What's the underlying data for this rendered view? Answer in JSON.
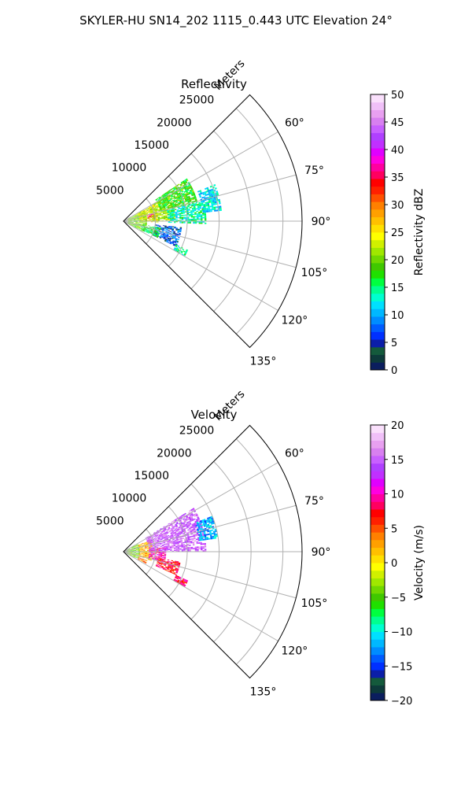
{
  "figure": {
    "suptitle": "SKYLER-HU  SN14_202  1115_0.443 UTC Elevation 24°"
  },
  "chart_data": [
    {
      "type": "heatmap",
      "projection": "polar-sector",
      "title": "Reflectivity",
      "radial_axis_label": "Meters",
      "radial_ticks": [
        5000,
        10000,
        15000,
        20000,
        25000
      ],
      "radial_tick_labels": [
        "5000",
        "10000",
        "15000",
        "20000",
        "25000"
      ],
      "range_max_m": 28000,
      "azimuth_range_deg": [
        45,
        135
      ],
      "azimuth_ticks_deg": [
        60,
        75,
        90,
        105,
        120,
        135
      ],
      "azimuth_tick_labels": [
        "60°",
        "75°",
        "90°",
        "105°",
        "120°",
        "135°"
      ],
      "grid": true,
      "colorbar": {
        "label": "Reflectivity dBZ",
        "min": 0,
        "max": 50,
        "ticks": [
          0,
          5,
          10,
          15,
          20,
          25,
          30,
          35,
          40,
          45,
          50
        ],
        "tick_labels": [
          "0",
          "5",
          "10",
          "15",
          "20",
          "25",
          "30",
          "35",
          "40",
          "45",
          "50"
        ],
        "colors": [
          "#0b1e5e",
          "#0d3a3a",
          "#145a3c",
          "#0b1ea8",
          "#0030ff",
          "#005cff",
          "#008cff",
          "#00b8ff",
          "#00e0ff",
          "#00ffd0",
          "#00ff90",
          "#00ff40",
          "#20e000",
          "#40c800",
          "#70d800",
          "#a0e800",
          "#d0f000",
          "#ffff00",
          "#ffe000",
          "#ffc000",
          "#ffa000",
          "#ff8000",
          "#ff5000",
          "#ff2000",
          "#ff0000",
          "#ff0060",
          "#ff00a0",
          "#ff00e0",
          "#e000ff",
          "#c030ff",
          "#b040ff",
          "#c860ff",
          "#d880f0",
          "#e8a0f0",
          "#f0c0f8",
          "#fae0fc"
        ]
      },
      "echo_regions": [
        {
          "r_m": [
            700,
            3500
          ],
          "az_deg": [
            60,
            118
          ],
          "value": 20
        },
        {
          "r_m": [
            2500,
            5500
          ],
          "az_deg": [
            62,
            92
          ],
          "value": 24
        },
        {
          "r_m": [
            3800,
            5200
          ],
          "az_deg": [
            75,
            84
          ],
          "value": 36
        },
        {
          "r_m": [
            4500,
            8000
          ],
          "az_deg": [
            60,
            90
          ],
          "value": 22
        },
        {
          "r_m": [
            6000,
            12000
          ],
          "az_deg": [
            56,
            76
          ],
          "value": 18
        },
        {
          "r_m": [
            7000,
            13000
          ],
          "az_deg": [
            76,
            92
          ],
          "value": 14
        },
        {
          "r_m": [
            12500,
            15500
          ],
          "az_deg": [
            68,
            84
          ],
          "value": 12
        },
        {
          "r_m": [
            5000,
            9000
          ],
          "az_deg": [
            96,
            116
          ],
          "value": 7
        },
        {
          "r_m": [
            9000,
            11000
          ],
          "az_deg": [
            114,
            120
          ],
          "value": 14
        },
        {
          "r_m": [
            3000,
            6000
          ],
          "az_deg": [
            100,
            116
          ],
          "value": 16
        }
      ]
    },
    {
      "type": "heatmap",
      "projection": "polar-sector",
      "title": "Velocity",
      "radial_axis_label": "Meters",
      "radial_ticks": [
        5000,
        10000,
        15000,
        20000,
        25000
      ],
      "radial_tick_labels": [
        "5000",
        "10000",
        "15000",
        "20000",
        "25000"
      ],
      "range_max_m": 28000,
      "azimuth_range_deg": [
        45,
        135
      ],
      "azimuth_ticks_deg": [
        60,
        75,
        90,
        105,
        120,
        135
      ],
      "azimuth_tick_labels": [
        "60°",
        "75°",
        "90°",
        "105°",
        "120°",
        "135°"
      ],
      "grid": true,
      "colorbar": {
        "label": "Velocity (m/s)",
        "min": -20,
        "max": 20,
        "ticks": [
          -20,
          -15,
          -10,
          -5,
          0,
          5,
          10,
          15,
          20
        ],
        "tick_labels": [
          "−20",
          "−15",
          "−10",
          "−5",
          "0",
          "5",
          "10",
          "15",
          "20"
        ],
        "colors": [
          "#0b1e5e",
          "#0d3a3a",
          "#145a3c",
          "#0b1ea8",
          "#0030ff",
          "#005cff",
          "#008cff",
          "#00b8ff",
          "#00e0ff",
          "#00ffd0",
          "#00ff90",
          "#00ff40",
          "#20e000",
          "#40c800",
          "#70d800",
          "#a0e800",
          "#d0f000",
          "#ffff00",
          "#ffe000",
          "#ffc000",
          "#ffa000",
          "#ff8000",
          "#ff5000",
          "#ff2000",
          "#ff0000",
          "#ff0060",
          "#ff00a0",
          "#ff00e0",
          "#e000ff",
          "#c030ff",
          "#b040ff",
          "#c860ff",
          "#d880f0",
          "#e8a0f0",
          "#f0c0f8",
          "#fae0fc"
        ]
      },
      "echo_regions": [
        {
          "r_m": [
            500,
            2500
          ],
          "az_deg": [
            62,
            118
          ],
          "value": -4
        },
        {
          "r_m": [
            2500,
            4500
          ],
          "az_deg": [
            66,
            108
          ],
          "value": 2
        },
        {
          "r_m": [
            4000,
            6500
          ],
          "az_deg": [
            84,
            104
          ],
          "value": 10
        },
        {
          "r_m": [
            4000,
            13000
          ],
          "az_deg": [
            58,
            90
          ],
          "value": 15
        },
        {
          "r_m": [
            12000,
            15000
          ],
          "az_deg": [
            68,
            82
          ],
          "value": -12
        },
        {
          "r_m": [
            5500,
            9000
          ],
          "az_deg": [
            100,
            114
          ],
          "value": 7
        },
        {
          "r_m": [
            9000,
            11000
          ],
          "az_deg": [
            114,
            120
          ],
          "value": 8
        },
        {
          "r_m": [
            2500,
            4000
          ],
          "az_deg": [
            110,
            118
          ],
          "value": 4
        }
      ]
    }
  ]
}
